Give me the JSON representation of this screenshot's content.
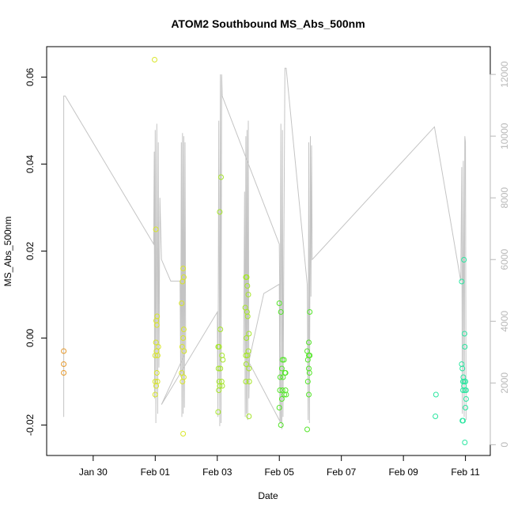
{
  "chart_data": {
    "type": "scatter",
    "title": "ATOM2 Southbound MS_Abs_500nm",
    "xlabel": "Date",
    "ylabel": "MS_Abs_500nm",
    "x_axis": {
      "type": "date",
      "ticks": [
        "Jan 30",
        "Feb 01",
        "Feb 03",
        "Feb 05",
        "Feb 07",
        "Feb 09",
        "Feb 11"
      ],
      "tick_values": [
        0,
        2,
        4,
        6,
        8,
        10,
        12
      ],
      "range": [
        -1.5,
        12.8
      ]
    },
    "y_axis": {
      "ticks": [
        "-0.02",
        "0.00",
        "0.02",
        "0.04",
        "0.06"
      ],
      "tick_values": [
        -0.02,
        0.0,
        0.02,
        0.04,
        0.06
      ],
      "range": [
        -0.027,
        0.067
      ]
    },
    "y2_axis": {
      "ticks": [
        "0",
        "2000",
        "4000",
        "6000",
        "8000",
        "10000",
        "12000"
      ],
      "tick_values": [
        0,
        2000,
        4000,
        6000,
        8000,
        10000,
        12000
      ],
      "range": [
        -350,
        12900
      ]
    },
    "series": [
      {
        "color": "#e69a2e",
        "points": [
          [
            -0.95,
            -0.003
          ],
          [
            -0.95,
            -0.006
          ],
          [
            -0.95,
            -0.008
          ]
        ]
      },
      {
        "color": "#d9e62a",
        "points": [
          [
            1.98,
            0.064
          ],
          [
            2.02,
            0.025
          ],
          [
            2.03,
            0.004
          ],
          [
            2.05,
            0.003
          ],
          [
            2.06,
            0.005
          ],
          [
            2.0,
            -0.004
          ],
          [
            2.02,
            -0.001
          ],
          [
            2.04,
            -0.003
          ],
          [
            2.08,
            -0.004
          ],
          [
            2.0,
            -0.01
          ],
          [
            2.03,
            -0.011
          ],
          [
            2.07,
            -0.01
          ],
          [
            2.0,
            -0.013
          ],
          [
            2.05,
            -0.008
          ],
          [
            2.1,
            -0.002
          ],
          [
            2.9,
            0.016
          ],
          [
            2.92,
            0.014
          ],
          [
            2.88,
            0.013
          ],
          [
            2.85,
            0.008
          ],
          [
            2.92,
            0.002
          ],
          [
            2.9,
            0.0
          ],
          [
            2.87,
            -0.002
          ],
          [
            2.93,
            -0.003
          ],
          [
            2.85,
            -0.008
          ],
          [
            2.88,
            -0.01
          ],
          [
            2.92,
            -0.009
          ],
          [
            2.9,
            -0.022
          ]
        ]
      },
      {
        "color": "#a6e62a",
        "points": [
          [
            4.12,
            0.037
          ],
          [
            4.08,
            0.029
          ],
          [
            4.1,
            0.002
          ],
          [
            4.03,
            -0.002
          ],
          [
            4.06,
            -0.002
          ],
          [
            4.15,
            -0.004
          ],
          [
            4.18,
            -0.005
          ],
          [
            4.04,
            -0.007
          ],
          [
            4.1,
            -0.007
          ],
          [
            4.06,
            -0.01
          ],
          [
            4.14,
            -0.01
          ],
          [
            4.05,
            -0.012
          ],
          [
            4.16,
            -0.011
          ],
          [
            4.08,
            -0.011
          ],
          [
            4.03,
            -0.017
          ],
          [
            4.92,
            0.014
          ],
          [
            4.95,
            0.014
          ],
          [
            4.97,
            0.012
          ],
          [
            5.0,
            0.01
          ],
          [
            4.9,
            0.007
          ],
          [
            4.96,
            0.006
          ],
          [
            4.98,
            0.005
          ],
          [
            5.02,
            0.001
          ],
          [
            4.94,
            0.0
          ],
          [
            5.0,
            -0.003
          ],
          [
            4.92,
            -0.004
          ],
          [
            4.97,
            -0.004
          ],
          [
            4.93,
            -0.006
          ],
          [
            5.02,
            -0.007
          ],
          [
            4.92,
            -0.01
          ],
          [
            5.03,
            -0.01
          ],
          [
            5.02,
            -0.018
          ]
        ]
      },
      {
        "color": "#55e62a",
        "points": [
          [
            6.0,
            0.008
          ],
          [
            6.05,
            0.006
          ],
          [
            6.1,
            -0.005
          ],
          [
            6.15,
            -0.005
          ],
          [
            6.08,
            -0.007
          ],
          [
            6.18,
            -0.008
          ],
          [
            6.2,
            -0.008
          ],
          [
            6.03,
            -0.009
          ],
          [
            6.12,
            -0.009
          ],
          [
            6.02,
            -0.012
          ],
          [
            6.1,
            -0.012
          ],
          [
            6.2,
            -0.012
          ],
          [
            6.16,
            -0.013
          ],
          [
            6.22,
            -0.013
          ],
          [
            6.0,
            -0.016
          ],
          [
            6.08,
            -0.014
          ],
          [
            6.05,
            -0.02
          ],
          [
            6.98,
            0.006
          ],
          [
            6.95,
            -0.001
          ],
          [
            6.9,
            -0.003
          ],
          [
            6.95,
            -0.004
          ],
          [
            6.98,
            -0.004
          ],
          [
            6.92,
            -0.005
          ],
          [
            6.95,
            -0.007
          ],
          [
            6.97,
            -0.008
          ],
          [
            6.92,
            -0.01
          ],
          [
            6.95,
            -0.013
          ],
          [
            6.9,
            -0.021
          ]
        ]
      },
      {
        "color": "#2ae6a0",
        "points": [
          [
            11.05,
            -0.013
          ],
          [
            11.03,
            -0.018
          ],
          [
            11.95,
            0.018
          ],
          [
            11.88,
            0.013
          ],
          [
            11.97,
            0.001
          ],
          [
            11.98,
            -0.002
          ],
          [
            11.88,
            -0.006
          ],
          [
            11.9,
            -0.007
          ],
          [
            11.93,
            -0.009
          ],
          [
            11.92,
            -0.01
          ],
          [
            11.96,
            -0.01
          ],
          [
            12.0,
            -0.01
          ],
          [
            11.95,
            -0.011
          ],
          [
            11.92,
            -0.012
          ],
          [
            11.98,
            -0.012
          ],
          [
            12.02,
            -0.012
          ],
          [
            12.02,
            -0.014
          ],
          [
            12.0,
            -0.016
          ],
          [
            11.9,
            -0.019
          ],
          [
            11.92,
            -0.019
          ],
          [
            11.98,
            -0.024
          ]
        ]
      }
    ],
    "altitude_series": {
      "color": "#c4c4c4",
      "points": [
        [
          -0.95,
          900
        ],
        [
          -0.95,
          11300
        ],
        [
          -0.9,
          11300
        ],
        [
          1.95,
          6500
        ],
        [
          1.97,
          9500
        ],
        [
          1.98,
          1500
        ],
        [
          2.0,
          10200
        ],
        [
          2.02,
          700
        ],
        [
          2.05,
          10400
        ],
        [
          2.08,
          1000
        ],
        [
          2.1,
          9800
        ],
        [
          2.12,
          2500
        ],
        [
          2.15,
          8000
        ],
        [
          2.2,
          6000
        ],
        [
          2.5,
          5300
        ],
        [
          2.8,
          5300
        ],
        [
          2.82,
          2200
        ],
        [
          2.84,
          9800
        ],
        [
          2.86,
          900
        ],
        [
          2.88,
          10100
        ],
        [
          2.9,
          1000
        ],
        [
          2.92,
          10000
        ],
        [
          2.94,
          1200
        ],
        [
          2.96,
          9800
        ],
        [
          2.98,
          3000
        ],
        [
          2.2,
          1300
        ],
        [
          4.0,
          4300
        ],
        [
          4.02,
          900
        ],
        [
          4.05,
          10500
        ],
        [
          4.08,
          600
        ],
        [
          4.1,
          12000
        ],
        [
          4.12,
          700
        ],
        [
          4.14,
          12000
        ],
        [
          4.16,
          11300
        ],
        [
          6.0,
          6500
        ],
        [
          6.05,
          700
        ],
        [
          4.85,
          3000
        ],
        [
          4.88,
          8200
        ],
        [
          4.9,
          900
        ],
        [
          4.92,
          10000
        ],
        [
          4.94,
          1000
        ],
        [
          4.96,
          10200
        ],
        [
          4.98,
          800
        ],
        [
          5.0,
          10500
        ],
        [
          5.02,
          1500
        ],
        [
          5.04,
          2800
        ],
        [
          5.3,
          4000
        ],
        [
          5.5,
          4900
        ],
        [
          6.0,
          5200
        ],
        [
          6.02,
          700
        ],
        [
          6.05,
          10400
        ],
        [
          6.08,
          500
        ],
        [
          6.1,
          10200
        ],
        [
          6.12,
          900
        ],
        [
          6.15,
          7000
        ],
        [
          6.18,
          12200
        ],
        [
          6.22,
          12200
        ],
        [
          6.9,
          5200
        ],
        [
          6.93,
          800
        ],
        [
          6.95,
          9800
        ],
        [
          6.97,
          700
        ],
        [
          7.0,
          10000
        ],
        [
          7.02,
          4800
        ],
        [
          7.04,
          9700
        ],
        [
          7.06,
          6000
        ],
        [
          11.0,
          10300
        ],
        [
          11.85,
          5300
        ],
        [
          11.88,
          9000
        ],
        [
          11.9,
          1000
        ],
        [
          11.93,
          9200
        ],
        [
          11.96,
          900
        ],
        [
          11.98,
          10000
        ],
        [
          12.0,
          9800
        ],
        [
          12.02,
          800
        ]
      ]
    }
  }
}
